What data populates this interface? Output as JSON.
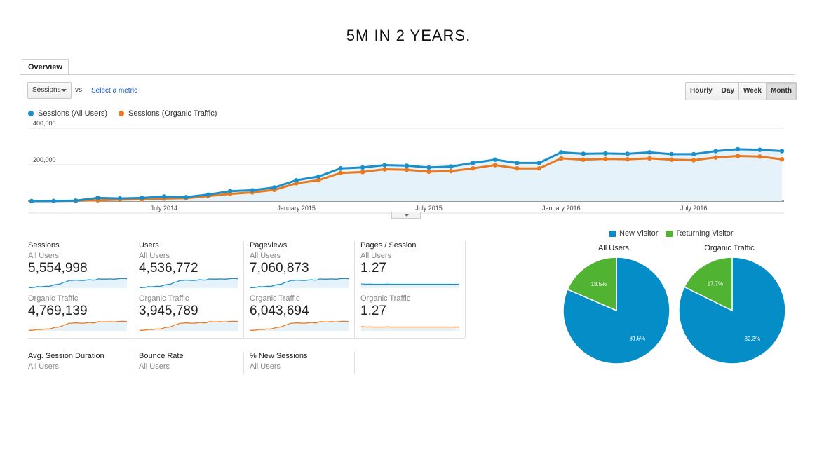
{
  "headline": "5M IN 2 YEARS.",
  "tabs": [
    {
      "label": "Overview"
    }
  ],
  "toolbar": {
    "metric_select": "Sessions",
    "vs_label": "vs.",
    "select_metric_link": "Select a metric",
    "granularity": [
      "Hourly",
      "Day",
      "Week",
      "Month"
    ],
    "active_granularity": "Month"
  },
  "colors": {
    "all_users": "#1a8fc9",
    "organic": "#e8791f",
    "area": "#e6f2f9",
    "new_visitor": "#058dc7",
    "returning_visitor": "#50b432"
  },
  "chart_data": {
    "type": "line",
    "series": [
      {
        "name": "Sessions (All Users)",
        "values": [
          0,
          1000,
          3000,
          18000,
          15000,
          18000,
          25000,
          22000,
          36000,
          55000,
          60000,
          75000,
          115000,
          135000,
          180000,
          185000,
          198000,
          195000,
          185000,
          190000,
          210000,
          228000,
          210000,
          210000,
          268000,
          260000,
          262000,
          260000,
          268000,
          258000,
          258000,
          275000,
          285000,
          282000,
          275000
        ]
      },
      {
        "name": "Sessions (Organic Traffic)",
        "values": [
          0,
          500,
          1500,
          5000,
          8000,
          10000,
          14000,
          16000,
          28000,
          40000,
          48000,
          62000,
          98000,
          115000,
          155000,
          160000,
          175000,
          172000,
          162000,
          165000,
          180000,
          198000,
          180000,
          180000,
          235000,
          228000,
          232000,
          230000,
          235000,
          228000,
          225000,
          240000,
          248000,
          245000,
          230000
        ]
      }
    ],
    "ylim": [
      0,
      400000
    ],
    "y_ticks": [
      "400,000",
      "200,000"
    ],
    "x_ticks": [
      "...",
      "July 2014",
      "January 2015",
      "July 2015",
      "January 2016",
      "July 2016"
    ],
    "legend_position": "top-left",
    "grid": true
  },
  "scorecards": [
    {
      "title": "Sessions",
      "all_users_label": "All Users",
      "all_users_value": "5,554,998",
      "organic_label": "Organic Traffic",
      "organic_value": "4,769,139",
      "trend": "growth"
    },
    {
      "title": "Users",
      "all_users_label": "All Users",
      "all_users_value": "4,536,772",
      "organic_label": "Organic Traffic",
      "organic_value": "3,945,789",
      "trend": "growth"
    },
    {
      "title": "Pageviews",
      "all_users_label": "All Users",
      "all_users_value": "7,060,873",
      "organic_label": "Organic Traffic",
      "organic_value": "6,043,694",
      "trend": "growth"
    },
    {
      "title": "Pages / Session",
      "all_users_label": "All Users",
      "all_users_value": "1.27",
      "organic_label": "Organic Traffic",
      "organic_value": "1.27",
      "trend": "flat"
    },
    {
      "title": "Avg. Session Duration",
      "all_users_label": "All Users"
    },
    {
      "title": "Bounce Rate",
      "all_users_label": "All Users"
    },
    {
      "title": "% New Sessions",
      "all_users_label": "All Users"
    }
  ],
  "pies": {
    "legend": [
      "New Visitor",
      "Returning Visitor"
    ],
    "charts": [
      {
        "title": "All Users",
        "new_pct": 81.5,
        "returning_pct": 18.5,
        "new_label": "81.5%",
        "returning_label": "18.5%"
      },
      {
        "title": "Organic Traffic",
        "new_pct": 82.3,
        "returning_pct": 17.7,
        "new_label": "82.3%",
        "returning_label": "17.7%"
      }
    ]
  }
}
